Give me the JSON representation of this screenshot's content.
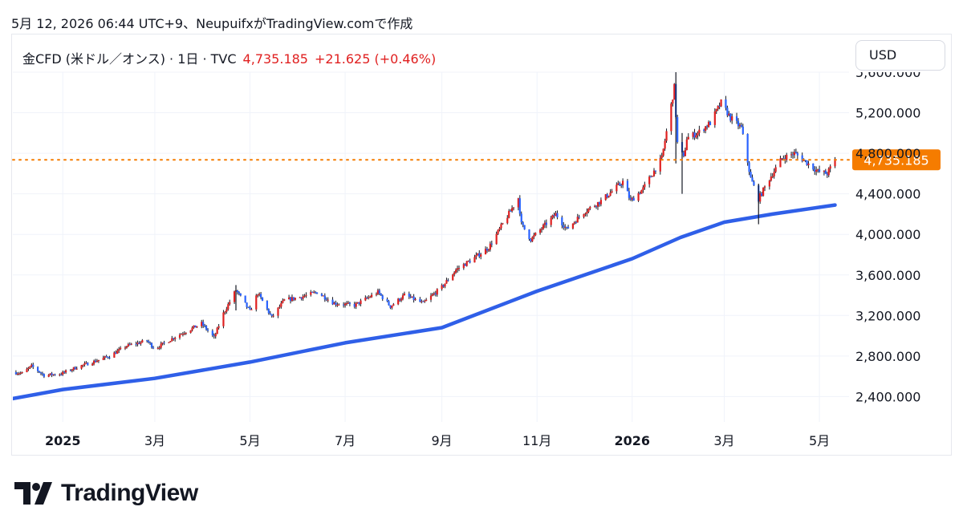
{
  "header": {
    "caption": "5月 12, 2026 06:44 UTC+9、NeupuifxがTradingView.comで作成"
  },
  "legend": {
    "symbol": "金CFD (米ドル／オンス) · 1日 · TVC",
    "last": "4,735.185",
    "change": "+21.625 (+0.46%)"
  },
  "currency_button": {
    "label": "USD"
  },
  "brand": {
    "name": "TradingView"
  },
  "colors": {
    "up": "#e02020",
    "down": "#2962ff",
    "ma": "#2f5fe8",
    "price_line": "#f57c00",
    "grid": "#f0f3fa",
    "text": "#131722"
  },
  "chart_data": {
    "type": "candlestick",
    "y_axis": {
      "ticks": [
        2400,
        2800,
        3200,
        3600,
        4000,
        4400,
        4800,
        5200,
        5600
      ],
      "tick_labels": [
        "2,400.000",
        "2,800.000",
        "3,200.000",
        "3,600.000",
        "4,000.000",
        "4,400.000",
        "4,800.000",
        "5,200.000",
        "5,600.000"
      ],
      "range": [
        2150,
        5600
      ]
    },
    "x_axis": {
      "range": [
        "2024-11-30",
        "2026-05-20"
      ],
      "ticks": [
        {
          "date": "2025-01-01",
          "label": "2025",
          "bold": true
        },
        {
          "date": "2025-03-01",
          "label": "3月",
          "bold": false
        },
        {
          "date": "2025-05-01",
          "label": "5月",
          "bold": false
        },
        {
          "date": "2025-07-01",
          "label": "7月",
          "bold": false
        },
        {
          "date": "2025-09-01",
          "label": "9月",
          "bold": false
        },
        {
          "date": "2025-11-01",
          "label": "11月",
          "bold": false
        },
        {
          "date": "2026-01-01",
          "label": "2026",
          "bold": true
        },
        {
          "date": "2026-03-01",
          "label": "3月",
          "bold": false
        },
        {
          "date": "2026-05-01",
          "label": "5月",
          "bold": false
        }
      ]
    },
    "last_price": {
      "value": 4735.185,
      "label": "4,735.185"
    },
    "price_path": [
      [
        "2024-11-30",
        2640
      ],
      [
        "2024-12-06",
        2630
      ],
      [
        "2024-12-12",
        2700
      ],
      [
        "2024-12-20",
        2610
      ],
      [
        "2024-12-31",
        2625
      ],
      [
        "2025-01-10",
        2690
      ],
      [
        "2025-01-22",
        2750
      ],
      [
        "2025-01-31",
        2800
      ],
      [
        "2025-02-11",
        2900
      ],
      [
        "2025-02-24",
        2950
      ],
      [
        "2025-03-01",
        2870
      ],
      [
        "2025-03-14",
        2990
      ],
      [
        "2025-03-31",
        3120
      ],
      [
        "2025-04-08",
        2980
      ],
      [
        "2025-04-14",
        3220
      ],
      [
        "2025-04-22",
        3450
      ],
      [
        "2025-05-01",
        3240
      ],
      [
        "2025-05-06",
        3420
      ],
      [
        "2025-05-15",
        3180
      ],
      [
        "2025-05-23",
        3350
      ],
      [
        "2025-06-02",
        3380
      ],
      [
        "2025-06-13",
        3430
      ],
      [
        "2025-06-24",
        3320
      ],
      [
        "2025-07-07",
        3300
      ],
      [
        "2025-07-22",
        3430
      ],
      [
        "2025-07-30",
        3290
      ],
      [
        "2025-08-08",
        3400
      ],
      [
        "2025-08-20",
        3320
      ],
      [
        "2025-09-01",
        3480
      ],
      [
        "2025-09-10",
        3650
      ],
      [
        "2025-09-23",
        3780
      ],
      [
        "2025-10-01",
        3870
      ],
      [
        "2025-10-08",
        4050
      ],
      [
        "2025-10-20",
        4360
      ],
      [
        "2025-10-22",
        4100
      ],
      [
        "2025-10-28",
        3950
      ],
      [
        "2025-11-13",
        4200
      ],
      [
        "2025-11-20",
        4050
      ],
      [
        "2025-12-01",
        4220
      ],
      [
        "2025-12-12",
        4330
      ],
      [
        "2025-12-26",
        4520
      ],
      [
        "2025-12-31",
        4330
      ],
      [
        "2026-01-08",
        4450
      ],
      [
        "2026-01-20",
        4750
      ],
      [
        "2026-01-28",
        5450
      ],
      [
        "2026-01-30",
        4900
      ],
      [
        "2026-02-03",
        4750
      ],
      [
        "2026-02-05",
        4950
      ],
      [
        "2026-02-12",
        5000
      ],
      [
        "2026-02-20",
        5100
      ],
      [
        "2026-02-27",
        5300
      ],
      [
        "2026-03-05",
        5150
      ],
      [
        "2026-03-12",
        5050
      ],
      [
        "2026-03-18",
        4550
      ],
      [
        "2026-03-23",
        4350
      ],
      [
        "2026-03-30",
        4550
      ],
      [
        "2026-04-07",
        4750
      ],
      [
        "2026-04-15",
        4800
      ],
      [
        "2026-04-22",
        4720
      ],
      [
        "2026-04-30",
        4620
      ],
      [
        "2026-05-06",
        4600
      ],
      [
        "2026-05-11",
        4735
      ]
    ],
    "moving_average": [
      [
        "2024-11-30",
        2380
      ],
      [
        "2025-01-01",
        2470
      ],
      [
        "2025-03-01",
        2580
      ],
      [
        "2025-05-01",
        2740
      ],
      [
        "2025-07-01",
        2930
      ],
      [
        "2025-09-01",
        3080
      ],
      [
        "2025-11-01",
        3440
      ],
      [
        "2026-01-01",
        3760
      ],
      [
        "2026-02-01",
        3970
      ],
      [
        "2026-03-01",
        4120
      ],
      [
        "2026-04-01",
        4200
      ],
      [
        "2026-05-11",
        4290
      ]
    ]
  }
}
